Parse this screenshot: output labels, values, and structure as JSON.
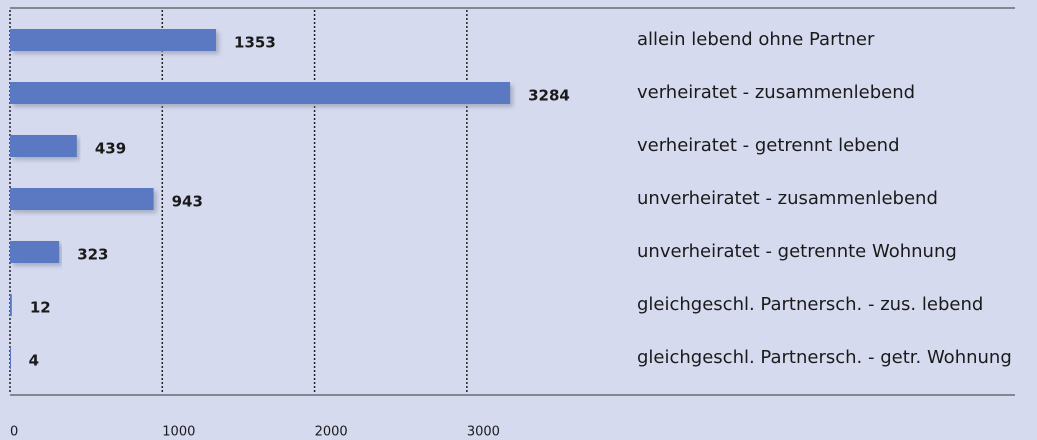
{
  "chart_data": {
    "type": "barh",
    "categories": [
      "allein lebend ohne Partner",
      "verheiratet - zusammenlebend",
      "verheiratet - getrennt lebend",
      "unverheiratet - zusammenlebend",
      "unverheiratet - getrennte Wohnung",
      "gleichgeschl. Partnersch. - zus. lebend",
      "gleichgeschl. Partnersch. - getr. Wohnung"
    ],
    "values": [
      1353,
      3284,
      439,
      943,
      323,
      12,
      4
    ],
    "color": "#5a79c2",
    "xlim": [
      0,
      3500
    ],
    "xticks": [
      0,
      1000,
      2000,
      3000
    ],
    "grid": true
  }
}
